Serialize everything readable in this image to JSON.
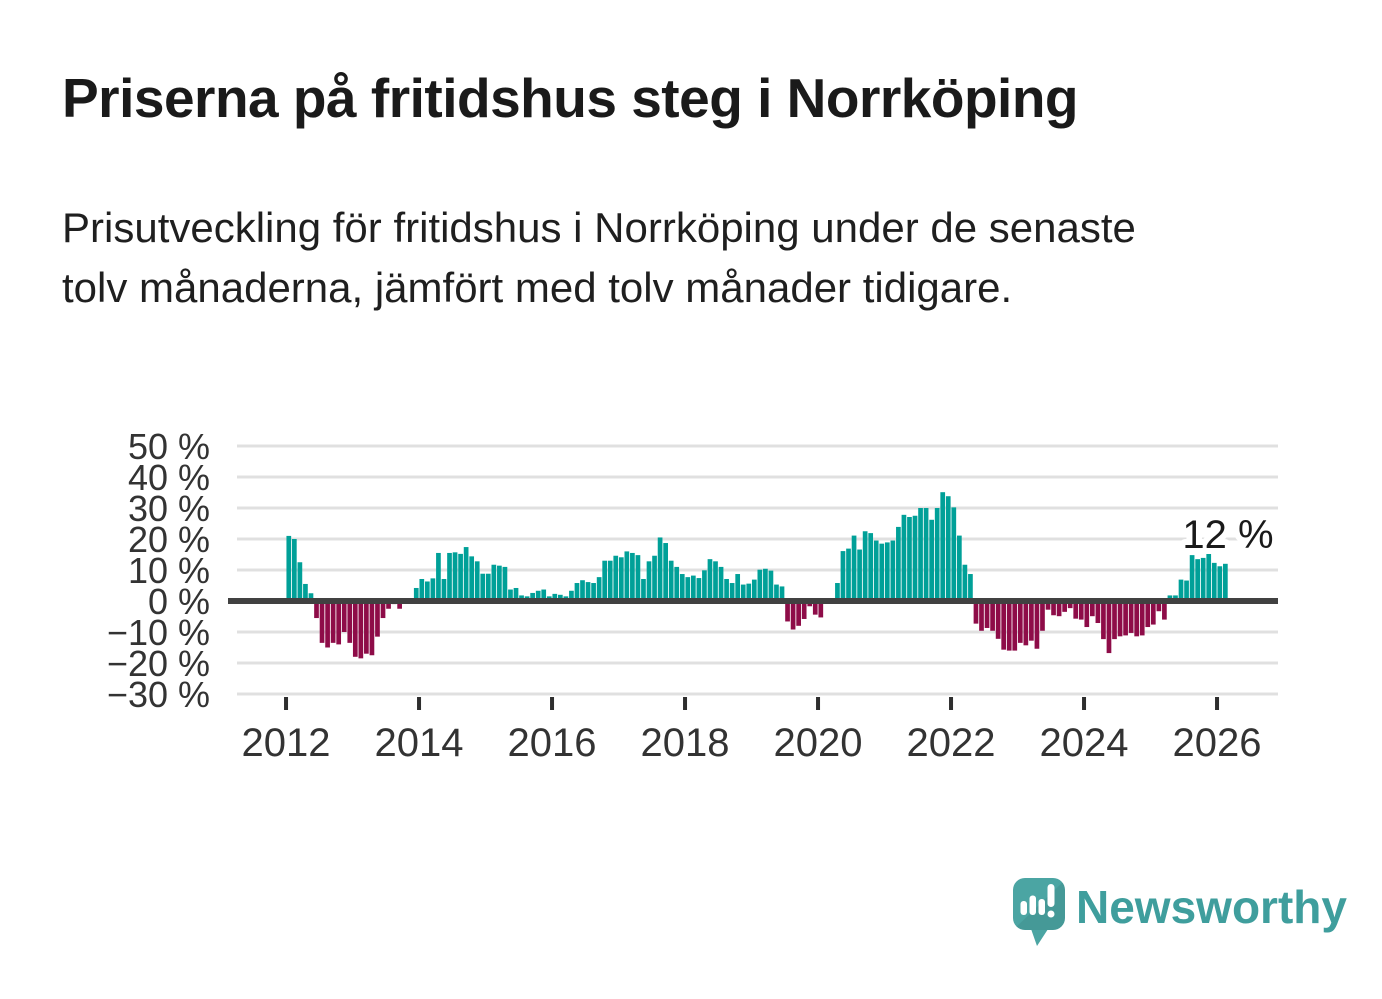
{
  "header": {
    "title": "Priserna på fritidshus steg i Norrköping",
    "subtitle": "Prisutveckling för fritidshus i Norrköping under de senaste tolv månaderna, jämfört med tolv månader tidigare."
  },
  "chart_data": {
    "type": "bar",
    "title": "Prisutveckling för fritidshus i Norrköping",
    "unit": "%",
    "frequency": "monthly",
    "x_start": "2012-01",
    "x_end": "2026-02",
    "x_tick_labels": [
      "2012",
      "2014",
      "2016",
      "2018",
      "2020",
      "2022",
      "2024",
      "2026"
    ],
    "y_axis": {
      "values": [
        50,
        40,
        30,
        20,
        10,
        0,
        -10,
        -20,
        -30
      ],
      "labels": [
        "50 %",
        "40 %",
        "30 %",
        "20 %",
        "10 %",
        "0 %",
        "−10 %",
        "−20 %",
        "−30 %"
      ],
      "ylim": [
        -30,
        50
      ],
      "grid": true
    },
    "legend": "none",
    "annotation": {
      "text": "12 %",
      "refers_to": "last bar (2026-02)"
    },
    "colors": {
      "positive": "#00a098",
      "negative": "#8e0c48",
      "axis_line": "#414141",
      "gridline": "#e0e0e0",
      "tick": "#2e2e2e"
    },
    "values": [
      21.0,
      20.0,
      12.5,
      5.5,
      2.5,
      -5.5,
      -13.5,
      -15.0,
      -13.5,
      -14.0,
      -10.0,
      -13.5,
      -18.0,
      -18.5,
      -17.0,
      -17.5,
      -11.5,
      -5.5,
      -2.5,
      -1.0,
      -2.5,
      0,
      0,
      4.2,
      7.1,
      6.3,
      7.3,
      15.5,
      7.1,
      15.5,
      15.7,
      15.2,
      17.4,
      14.4,
      12.8,
      8.8,
      8.8,
      11.7,
      11.4,
      11.0,
      3.7,
      4.2,
      1.8,
      1.5,
      2.6,
      3.3,
      3.7,
      1.5,
      2.3,
      2.0,
      1.5,
      3.3,
      5.8,
      6.7,
      6.1,
      5.8,
      7.7,
      13.0,
      13.0,
      14.6,
      14.1,
      16.0,
      15.5,
      14.8,
      7.1,
      12.8,
      14.6,
      20.5,
      18.7,
      13.0,
      11.0,
      8.7,
      7.7,
      8.2,
      7.4,
      9.9,
      13.5,
      12.8,
      11.0,
      7.1,
      5.8,
      8.7,
      5.3,
      5.6,
      6.9,
      10.1,
      10.4,
      9.8,
      5.3,
      4.7,
      -6.6,
      -9.2,
      -8.0,
      -5.8,
      -1.7,
      -4.4,
      -5.3,
      0,
      0,
      5.8,
      16.1,
      16.9,
      21.1,
      16.6,
      22.5,
      21.9,
      19.5,
      18.5,
      18.9,
      19.5,
      23.9,
      27.8,
      27.1,
      27.5,
      30.0,
      30.0,
      26.2,
      30.0,
      35.1,
      33.8,
      30.2,
      21.1,
      11.7,
      8.7,
      -7.3,
      -9.6,
      -8.7,
      -9.6,
      -12.2,
      -15.7,
      -16.0,
      -16.0,
      -13.5,
      -14.3,
      -12.8,
      -15.4,
      -9.6,
      -2.8,
      -4.6,
      -4.9,
      -3.5,
      -2.3,
      -5.7,
      -6.0,
      -8.4,
      -4.9,
      -7.1,
      -12.3,
      -16.8,
      -12.3,
      -11.4,
      -11.1,
      -10.3,
      -11.4,
      -11.1,
      -8.4,
      -7.6,
      -3.3,
      -6.0,
      1.8,
      1.8,
      6.9,
      6.6,
      14.8,
      13.5,
      13.9,
      16.0,
      12.3,
      11.2,
      12.0
    ]
  },
  "footer": {
    "brand": "Newsworthy",
    "brand_color": "#3f9e9d",
    "logo_icon": "newsworthy-speech-bubble-bar-chart-icon"
  }
}
